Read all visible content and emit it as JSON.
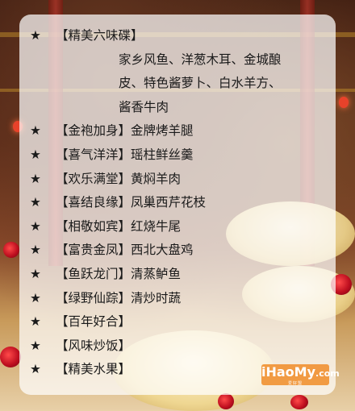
{
  "menu": {
    "items": [
      {
        "name": "【精美六味碟】",
        "dish": "",
        "lines": [
          "家乡风鱼、洋葱木耳、金城酿",
          "皮、特色酱萝卜、白水羊方、",
          "酱香牛肉"
        ]
      },
      {
        "name": "【金袍加身】",
        "dish": "金牌烤羊腿"
      },
      {
        "name": "【喜气洋洋】",
        "dish": "瑶柱鲜丝羹"
      },
      {
        "name": "【欢乐满堂】",
        "dish": "黄焖羊肉"
      },
      {
        "name": "【喜结良缘】",
        "dish": "凤巢西芹花枝"
      },
      {
        "name": "【相敬如宾】",
        "dish": "红烧牛尾"
      },
      {
        "name": "【富贵金凤】",
        "dish": "西北大盘鸡"
      },
      {
        "name": "【鱼跃龙门】",
        "dish": "清蒸鲈鱼"
      },
      {
        "name": "【绿野仙踪】",
        "dish": "清炒时蔬"
      },
      {
        "name": "【百年好合】",
        "dish": ""
      },
      {
        "name": "【风味炒饭】",
        "dish": ""
      },
      {
        "name": "【精美水果】",
        "dish": ""
      }
    ],
    "bullet": "★"
  },
  "watermark": {
    "main": "iHaoMy",
    "suffix": ".com",
    "sub": "爱好盟"
  }
}
